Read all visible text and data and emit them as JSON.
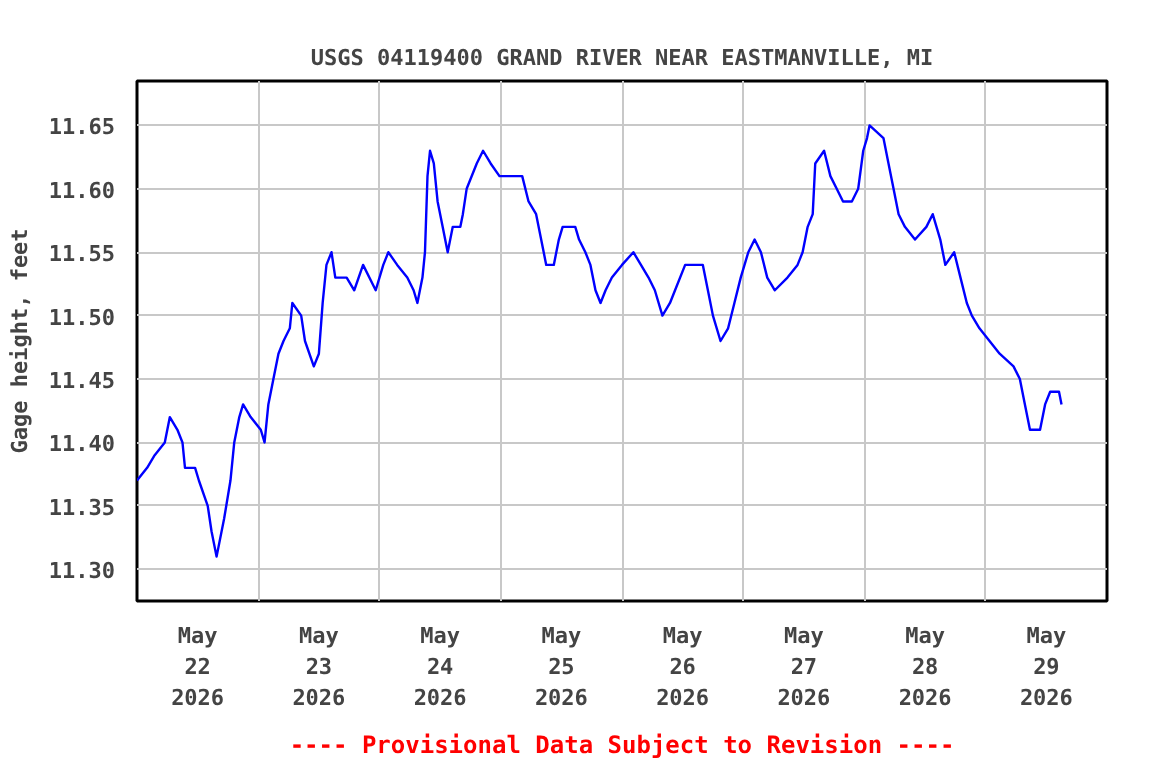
{
  "chart_data": {
    "type": "line",
    "title": "USGS 04119400 GRAND RIVER NEAR EASTMANVILLE, MI",
    "ylabel": "Gage height, feet",
    "annotations": [
      "---- Provisional Data Subject to Revision ----"
    ],
    "xlim": [
      "2026-05-22T00:00",
      "2026-05-30T00:00"
    ],
    "xticks": [
      {
        "value": "2026-05-22T12:00",
        "label": "May\n22\n2026"
      },
      {
        "value": "2026-05-23T12:00",
        "label": "May\n23\n2026"
      },
      {
        "value": "2026-05-24T12:00",
        "label": "May\n24\n2026"
      },
      {
        "value": "2026-05-25T12:00",
        "label": "May\n25\n2026"
      },
      {
        "value": "2026-05-26T12:00",
        "label": "May\n26\n2026"
      },
      {
        "value": "2026-05-27T12:00",
        "label": "May\n27\n2026"
      },
      {
        "value": "2026-05-28T12:00",
        "label": "May\n28\n2026"
      },
      {
        "value": "2026-05-29T12:00",
        "label": "May\n29\n2026"
      },
      {
        "value": "2026-05-23T00:00",
        "label": null
      },
      {
        "value": "2026-05-24T00:00",
        "label": null
      },
      {
        "value": "2026-05-25T00:00",
        "label": null
      },
      {
        "value": "2026-05-26T00:00",
        "label": null
      },
      {
        "value": "2026-05-27T00:00",
        "label": null
      },
      {
        "value": "2026-05-28T00:00",
        "label": null
      },
      {
        "value": "2026-05-29T00:00",
        "label": null
      }
    ],
    "ylim": [
      11.275,
      11.685
    ],
    "yticks": [
      {
        "value": 11.3,
        "label": "11.30"
      },
      {
        "value": 11.35,
        "label": "11.35"
      },
      {
        "value": 11.4,
        "label": "11.40"
      },
      {
        "value": 11.45,
        "label": "11.45"
      },
      {
        "value": 11.5,
        "label": "11.50"
      },
      {
        "value": 11.55,
        "label": "11.55"
      },
      {
        "value": 11.6,
        "label": "11.60"
      },
      {
        "value": 11.65,
        "label": "11.65"
      }
    ],
    "grid": true,
    "marker": "none",
    "line_style": "solid",
    "series": [
      {
        "color": "#0000ff",
        "x": [
          "2026-05-22T00:00",
          "2026-05-22T02:00",
          "2026-05-22T03:30",
          "2026-05-22T05:30",
          "2026-05-22T06:30",
          "2026-05-22T08:00",
          "2026-05-22T09:00",
          "2026-05-22T09:30",
          "2026-05-22T11:30",
          "2026-05-22T12:15",
          "2026-05-22T14:00",
          "2026-05-22T14:45",
          "2026-05-22T15:45",
          "2026-05-22T17:15",
          "2026-05-22T18:30",
          "2026-05-22T19:15",
          "2026-05-22T20:15",
          "2026-05-22T21:00",
          "2026-05-22T22:30",
          "2026-05-23T00:30",
          "2026-05-23T01:15",
          "2026-05-23T02:00",
          "2026-05-23T03:00",
          "2026-05-23T04:00",
          "2026-05-23T05:00",
          "2026-05-23T06:15",
          "2026-05-23T06:45",
          "2026-05-23T08:30",
          "2026-05-23T09:15",
          "2026-05-23T11:00",
          "2026-05-23T12:00",
          "2026-05-23T12:45",
          "2026-05-23T13:30",
          "2026-05-23T14:30",
          "2026-05-23T15:15",
          "2026-05-23T17:30",
          "2026-05-23T19:00",
          "2026-05-23T20:45",
          "2026-05-23T23:15",
          "2026-05-24T00:45",
          "2026-05-24T01:45",
          "2026-05-24T03:30",
          "2026-05-24T05:30",
          "2026-05-24T06:45",
          "2026-05-24T07:30",
          "2026-05-24T08:30",
          "2026-05-24T09:00",
          "2026-05-24T09:30",
          "2026-05-24T10:00",
          "2026-05-24T10:45",
          "2026-05-24T11:30",
          "2026-05-24T12:30",
          "2026-05-24T13:30",
          "2026-05-24T14:30",
          "2026-05-24T16:00",
          "2026-05-24T16:30",
          "2026-05-24T17:15",
          "2026-05-24T19:15",
          "2026-05-24T20:30",
          "2026-05-24T22:00",
          "2026-05-24T23:45",
          "2026-05-25T04:15",
          "2026-05-25T05:30",
          "2026-05-25T07:00",
          "2026-05-25T08:00",
          "2026-05-25T09:00",
          "2026-05-25T10:30",
          "2026-05-25T11:30",
          "2026-05-25T12:15",
          "2026-05-25T14:45",
          "2026-05-25T15:30",
          "2026-05-25T16:45",
          "2026-05-25T17:45",
          "2026-05-25T18:45",
          "2026-05-25T19:45",
          "2026-05-25T20:45",
          "2026-05-25T22:00",
          "2026-05-26T00:00",
          "2026-05-26T02:15",
          "2026-05-26T03:45",
          "2026-05-26T05:15",
          "2026-05-26T06:30",
          "2026-05-26T08:00",
          "2026-05-26T09:30",
          "2026-05-26T10:30",
          "2026-05-26T12:30",
          "2026-05-26T16:00",
          "2026-05-26T17:00",
          "2026-05-26T18:00",
          "2026-05-26T19:30",
          "2026-05-26T21:00",
          "2026-05-26T22:15",
          "2026-05-26T23:30",
          "2026-05-27T01:00",
          "2026-05-27T02:15",
          "2026-05-27T03:30",
          "2026-05-27T04:45",
          "2026-05-27T06:15",
          "2026-05-27T08:45",
          "2026-05-27T10:45",
          "2026-05-27T11:45",
          "2026-05-27T12:45",
          "2026-05-27T13:45",
          "2026-05-27T14:15",
          "2026-05-27T16:00",
          "2026-05-27T17:15",
          "2026-05-27T18:30",
          "2026-05-27T19:45",
          "2026-05-27T21:30",
          "2026-05-27T22:45",
          "2026-05-27T23:45",
          "2026-05-28T00:30",
          "2026-05-28T01:00",
          "2026-05-28T03:45",
          "2026-05-28T04:45",
          "2026-05-28T05:45",
          "2026-05-28T06:45",
          "2026-05-28T08:00",
          "2026-05-28T10:00",
          "2026-05-28T12:15",
          "2026-05-28T13:30",
          "2026-05-28T15:00",
          "2026-05-28T16:00",
          "2026-05-28T17:45",
          "2026-05-28T19:00",
          "2026-05-28T20:15",
          "2026-05-28T21:15",
          "2026-05-28T22:45",
          "2026-05-29T00:45",
          "2026-05-29T02:45",
          "2026-05-29T05:30",
          "2026-05-29T06:45",
          "2026-05-29T07:45",
          "2026-05-29T08:45",
          "2026-05-29T10:45",
          "2026-05-29T11:45",
          "2026-05-29T12:45",
          "2026-05-29T14:30",
          "2026-05-29T15:00"
        ],
        "values": [
          11.37,
          11.38,
          11.39,
          11.4,
          11.42,
          11.41,
          11.4,
          11.38,
          11.38,
          11.37,
          11.35,
          11.33,
          11.31,
          11.34,
          11.37,
          11.4,
          11.42,
          11.43,
          11.42,
          11.41,
          11.4,
          11.43,
          11.45,
          11.47,
          11.48,
          11.49,
          11.51,
          11.5,
          11.48,
          11.46,
          11.47,
          11.51,
          11.54,
          11.55,
          11.53,
          11.53,
          11.52,
          11.54,
          11.52,
          11.54,
          11.55,
          11.54,
          11.53,
          11.52,
          11.51,
          11.53,
          11.55,
          11.61,
          11.63,
          11.62,
          11.59,
          11.57,
          11.55,
          11.57,
          11.57,
          11.58,
          11.6,
          11.62,
          11.63,
          11.62,
          11.61,
          11.61,
          11.59,
          11.58,
          11.56,
          11.54,
          11.54,
          11.56,
          11.57,
          11.57,
          11.56,
          11.55,
          11.54,
          11.52,
          11.51,
          11.52,
          11.53,
          11.54,
          11.55,
          11.54,
          11.53,
          11.52,
          11.5,
          11.51,
          11.52,
          11.54,
          11.54,
          11.52,
          11.5,
          11.48,
          11.49,
          11.51,
          11.53,
          11.55,
          11.56,
          11.55,
          11.53,
          11.52,
          11.53,
          11.54,
          11.55,
          11.57,
          11.58,
          11.62,
          11.63,
          11.61,
          11.6,
          11.59,
          11.59,
          11.6,
          11.63,
          11.64,
          11.65,
          11.64,
          11.62,
          11.6,
          11.58,
          11.57,
          11.56,
          11.57,
          11.58,
          11.56,
          11.54,
          11.55,
          11.53,
          11.51,
          11.5,
          11.49,
          11.48,
          11.47,
          11.46,
          11.45,
          11.43,
          11.41,
          11.41,
          11.43,
          11.44,
          11.44,
          11.43
        ]
      }
    ]
  }
}
